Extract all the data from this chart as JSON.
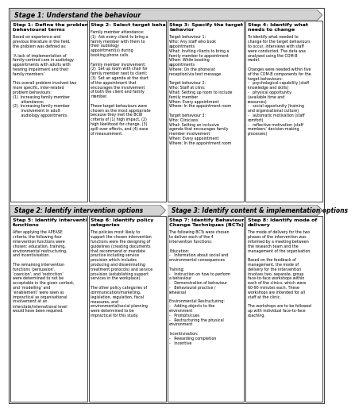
{
  "stage1_label": "Stage 1: Understand the behaviour",
  "stage2_label": "Stage 2: Identify intervention options",
  "stage3_label": "Stage 3: Identify content & implementation options",
  "step1_title": "Step 1: Define the problem in\nbehavioural terms",
  "step1_body": "Based on experience and\nprevious literature in the field,\nthe problem was defined as:\n\n‘A lack of implementation of\nfamily-centred care in audiology\nappointments with adults with\nhearing impairment and their\nfamily members’\n\nThis overall problem involved two\nmore specific, inter-related\nproblem behaviours:\n(1)  Increasing family member\n       attendance;\n(2)  Increasing family member\n       involvement in adult\n       audiology appointments.",
  "step2_title": "Step 2: Select target behavior",
  "step2_body": "Family member attendance:\n(1)  Ask every client to bring a\nfamily member with them to\ntheir audiology\nappointment(s) during\nbooking phone calls.\n\nFamily member involvement:\n(2)  Set up room with chair for\nfamily member next to client;\n(3)  Set an agenda at the start\nof the appointment that\nencourages the involvement\nof both the client and family\nmember.\n\nThese target behaviours were\nchosen as the most appropriate\nbecause they met the BCW\ncriteria of (1) high impact, (2)\nhigh likelihood for change, (3)\nspill-over effects, and (4) ease\nof measurement.",
  "step3_title": "Step 3: Specify the target\nbehavior",
  "step3_body": "Target behaviour 1:\nWho: Any staff who book\nappointments\nWhat: Inviting clients to bring a\nfamily member to appointment\nWhen: While booking\nappointments\nWhere: On the phone/at\nreception/via text message\n\nTarget behaviour 2:\nWho: Staff at clinic\nWhat: Setting up room to include\nfamily member\nWhen: Every appointment\nWhere: In the appointment room\n\nTarget behaviour 3:\nWho: Clinicians\nWhat: Setting an inclusive\nagenda that encourages family\nmember involvement\nWhen: Every appointment\nWhere: In the appointment room",
  "step4_title": "Step 4: Identify what\nneeds to change",
  "step4_body": "To identify what needed to\nchange for the target behaviours\nto occur, interviews with staff\nwere conducted. The data was\nanalysed using the COM-B\nmodel.\n\nChanges were needed within five\nof the COM-B components for the\ntarget behaviours:\n-   psychological capability (staff\nknowledge and skills)\n-   physical opportunity\n(available time and\nresources)\n-   social opportunity (training\nand organisational culture)\n-   automatic motivation (staff\ncomfort)\n-   reflective motivation (staff\nmembers’ decision-making\nprocesses)",
  "step5_title": "Step 5: Identify intervention\nfunctions",
  "step5_body": "After applying the APEASE\ncriteria, the following four\nintervention functions were\nchosen: education, training,\nenvironmental restructuring,\nand incentivisation.\n\nThe remaining intervention\nfunctions ‘persuasion’,\n‘coercion’, and ‘restriction’\nwere determined to not be\nacceptable in the given context,\nand ‘modelling’ and\n‘enablement’ were seen as\nimpractical as organisational\ninvolvement at an\ninterstate/international level\nwould have been required.",
  "step6_title": "Step 6: Identify policy\ncategories",
  "step6_body": "The policies most likely to\nsupport the chosen intervention\nfunctions were the designing of\nguidelines (creating documents\nthat recommend or mandate\npractice including service\nprovision which includes\nproducing and disseminating\ntreatment protocols) and service\nprovision (establishing support\nservices in the workplace).\n\nThe other policy categories of\ncommunication/marketing,\nlegislation, regulation, fiscal\nmeasures, and\nenvironmental/social planning\nwere determined to be\nimpractical for this study.",
  "step7_title": "Step 7: Identify Behaviour\nChange Techniques (BCTs)",
  "step7_body": "The following BCTs were chosen\nto deliver each of the 4\nintervention functions:\n\nEducation:\n-   Information about social and\nenvironmental consequences\n\nTraining:\n-   Instruction on how to perform\na behaviour\n-   Demonstration of behaviour\n-   Behavioural practice /\nrehearsal\n\nEnvironmental Restructuring:\n-   Adding objects to the\nenvironment\n-   Prompts/cues\n-   Restructuring the physical\nenvironment\n\nIncentivisation:\n-   Rewarding completion\n-   Incentive",
  "step8_title": "Step 8: Identify mode of\ndelivery",
  "step8_body": "The mode of delivery for the two\nphases of the intervention was\ninformed by a meeting between\nthe research team and the\nmanagement of the organisation.\n\nBased on the feedback of\nmanagement, the mode of\ndelivery for the intervention\ninvolves two, separate, group\nface-to-face workshops within\neach of the clinics, which were\n60-90 minutes each. These\nworkshops are intended for all\nstaff at the clinic.\n\nThe workshops are to be followed\nup with individual face-to-face\ncoaching.",
  "arrow_color": "#d3d3d3",
  "box_bg": "#ffffff",
  "box_border": "#000000",
  "stage_bg": "#d3d3d3",
  "text_color": "#000000"
}
